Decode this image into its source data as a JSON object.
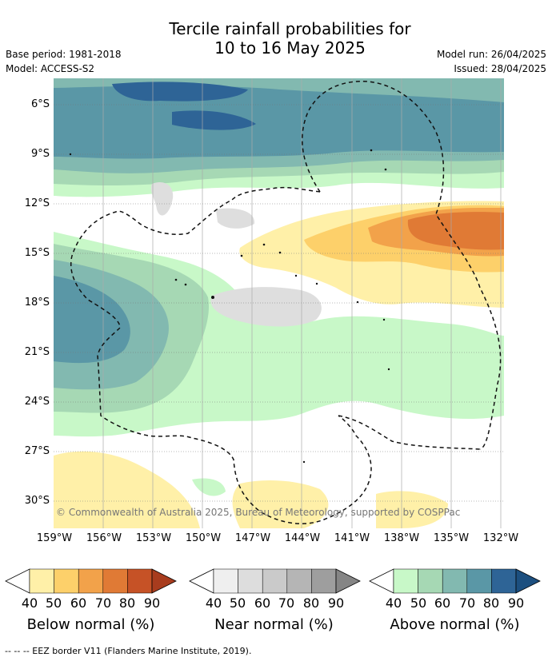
{
  "title_line1": "Tercile rainfall probabilities for",
  "title_line2": "10 to 16 May 2025",
  "base_period": "Base period: 1981-2018",
  "model": "Model: ACCESS-S2",
  "model_run": "Model run: 26/04/2025",
  "issued": "Issued: 28/04/2025",
  "lat_labels": [
    "6°S",
    "9°S",
    "12°S",
    "15°S",
    "18°S",
    "21°S",
    "24°S",
    "27°S",
    "30°S"
  ],
  "lon_labels": [
    "159°W",
    "156°W",
    "153°W",
    "150°W",
    "147°W",
    "144°W",
    "141°W",
    "138°W",
    "135°W",
    "132°W"
  ],
  "copyright": "© Commonwealth of Australia 2025, Bureau of Meteorology, supported by COSPPac",
  "legend": {
    "tick_values": [
      "40",
      "50",
      "60",
      "70",
      "80",
      "90"
    ],
    "below_title": "Below normal (%)",
    "near_title": "Near normal (%)",
    "above_title": "Above normal (%)",
    "below_colors": [
      "#fff0a8",
      "#fdd06a",
      "#f2a24a",
      "#e07a35",
      "#c65226",
      "#a83c1e"
    ],
    "near_colors": [
      "#efefef",
      "#dddddd",
      "#cacaca",
      "#b5b5b5",
      "#9e9e9e",
      "#858585"
    ],
    "above_colors": [
      "#c8f8c8",
      "#a6d8b4",
      "#82b9b0",
      "#5a97a6",
      "#2e6496",
      "#1c4f7f"
    ]
  },
  "footnote": "-- -- -- EEZ border V11 (Flanders Marine Institute, 2019)."
}
